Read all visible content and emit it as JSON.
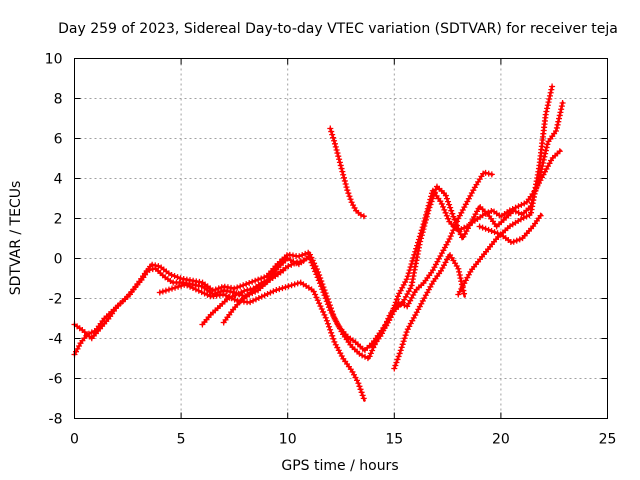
{
  "chart_data": {
    "type": "scatter",
    "title": "Day 259 of 2023, Sidereal Day-to-day VTEC variation (SDTVAR) for receiver teja",
    "xlabel": "GPS time / hours",
    "ylabel": "SDTVAR / TECUs",
    "xlim": [
      0,
      25
    ],
    "ylim": [
      -8,
      10
    ],
    "xticks": [
      "0",
      "5",
      "10",
      "15",
      "20",
      "25"
    ],
    "yticks": [
      "-8",
      "-6",
      "-4",
      "-2",
      "0",
      "2",
      "4",
      "6",
      "8",
      "10"
    ],
    "grid": true,
    "marker": "plus",
    "color": "#ff0000",
    "series": [
      {
        "x": [
          0,
          0.3,
          0.6,
          1.0,
          1.4,
          1.8,
          2.2,
          2.6,
          3.0,
          3.4,
          3.8,
          4.2,
          4.6,
          5.0,
          5.5,
          6.0,
          6.5,
          7.0,
          7.5,
          8.0,
          8.5,
          9.0,
          9.5,
          10.0,
          10.5,
          11.0,
          11.5,
          12.0,
          12.4,
          12.8,
          13.2,
          13.6,
          14.0,
          14.4,
          14.8,
          15.2,
          15.6,
          16.0,
          16.4,
          16.8,
          17.2,
          17.6,
          18.0,
          18.4,
          18.8,
          19.2,
          19.6,
          20.0,
          20.4,
          20.8,
          21.2,
          21.6,
          22.0,
          22.4,
          22.8
        ],
        "y": [
          -4.8,
          -4.2,
          -3.8,
          -3.6,
          -3.0,
          -2.6,
          -2.2,
          -1.8,
          -1.2,
          -0.6,
          -0.5,
          -0.9,
          -1.2,
          -1.2,
          -1.3,
          -1.4,
          -1.8,
          -1.6,
          -1.7,
          -1.9,
          -1.5,
          -1.2,
          -0.5,
          0.0,
          -0.3,
          0.1,
          -1.2,
          -2.6,
          -3.4,
          -3.9,
          -4.2,
          -4.6,
          -4.2,
          -3.6,
          -3.0,
          -1.8,
          -1.0,
          0.4,
          1.8,
          3.4,
          2.8,
          1.8,
          1.4,
          1.6,
          1.9,
          2.2,
          2.4,
          2.1,
          2.4,
          2.6,
          2.8,
          3.4,
          4.2,
          5.0,
          5.4
        ]
      },
      {
        "x": [
          0,
          0.4,
          0.8,
          1.2,
          1.6,
          2.0,
          2.4,
          2.8,
          3.2,
          3.6,
          4.0,
          4.5,
          5.0,
          5.5,
          6.0,
          6.5,
          7.0,
          7.5,
          8.0,
          8.5,
          9.0,
          9.5,
          10.0,
          10.5,
          11.0,
          11.4,
          11.8,
          12.2,
          12.6,
          13.0,
          13.4,
          13.8,
          14.2,
          14.6,
          15.0,
          15.4,
          15.8,
          16.2,
          16.6,
          17.0,
          17.4,
          17.8,
          18.2,
          18.6,
          19.0,
          19.4,
          19.8,
          20.2,
          20.6,
          21.0,
          21.4,
          21.8,
          22.2,
          22.6,
          22.9
        ],
        "y": [
          -3.3,
          -3.6,
          -4.0,
          -3.5,
          -3.0,
          -2.4,
          -2.0,
          -1.5,
          -1.0,
          -0.3,
          -0.4,
          -0.8,
          -1.0,
          -1.1,
          -1.2,
          -1.6,
          -1.4,
          -1.5,
          -1.3,
          -1.1,
          -0.9,
          -0.3,
          0.2,
          0.1,
          0.3,
          -0.6,
          -1.8,
          -3.0,
          -3.8,
          -4.4,
          -4.8,
          -5.0,
          -4.0,
          -3.4,
          -2.6,
          -2.2,
          -1.4,
          0.8,
          2.4,
          3.6,
          3.2,
          2.0,
          1.0,
          1.8,
          2.6,
          2.2,
          1.6,
          2.0,
          2.4,
          2.2,
          2.6,
          4.0,
          5.8,
          6.4,
          7.8
        ]
      },
      {
        "x": [
          4.0,
          4.6,
          5.2,
          5.8,
          6.4,
          7.0,
          7.6,
          8.2,
          8.8,
          9.4,
          10.0,
          10.6,
          11.2,
          11.8,
          12.2,
          12.6,
          13.0,
          13.3,
          13.6
        ],
        "y": [
          -1.7,
          -1.5,
          -1.3,
          -1.6,
          -1.9,
          -1.8,
          -2.1,
          -2.2,
          -1.9,
          -1.6,
          -1.4,
          -1.2,
          -1.6,
          -3.0,
          -4.2,
          -5.0,
          -5.6,
          -6.2,
          -7.1
        ]
      },
      {
        "x": [
          6.0,
          6.4,
          6.8,
          7.2,
          7.6,
          8.0,
          8.4,
          8.8,
          9.2,
          9.6,
          10.0,
          10.4,
          10.8
        ],
        "y": [
          -3.3,
          -2.8,
          -2.4,
          -2.0,
          -1.8,
          -1.6,
          -1.5,
          -1.2,
          -1.0,
          -0.7,
          -0.4,
          -0.2,
          -0.1
        ]
      },
      {
        "x": [
          7.0,
          7.4,
          7.8,
          8.2,
          8.6,
          9.0,
          9.4,
          9.8
        ],
        "y": [
          -3.2,
          -2.6,
          -2.1,
          -1.8,
          -1.6,
          -1.2,
          -0.9,
          -0.6
        ]
      },
      {
        "x": [
          12.0,
          12.2,
          12.4,
          12.6,
          12.8,
          13.0,
          13.2,
          13.4,
          13.6
        ],
        "y": [
          6.5,
          5.8,
          5.0,
          4.2,
          3.4,
          2.8,
          2.4,
          2.2,
          2.1
        ]
      },
      {
        "x": [
          14.0,
          14.4,
          14.8,
          15.2,
          15.6,
          16.0,
          16.4,
          16.8,
          17.2,
          17.6,
          18.0,
          18.4,
          18.8,
          19.2,
          19.6
        ],
        "y": [
          -4.4,
          -3.8,
          -2.8,
          -2.2,
          -2.4,
          -1.6,
          -1.2,
          -0.6,
          0.2,
          1.0,
          2.0,
          2.8,
          3.6,
          4.3,
          4.2
        ]
      },
      {
        "x": [
          15.0,
          15.3,
          15.6,
          16.0,
          16.4,
          16.8,
          17.2,
          17.6,
          18.0,
          18.3
        ],
        "y": [
          -5.5,
          -4.6,
          -3.6,
          -2.8,
          -2.0,
          -1.2,
          -0.6,
          0.2,
          -0.5,
          -1.9
        ]
      },
      {
        "x": [
          18.0,
          18.6,
          19.2,
          19.8,
          20.4,
          21.0,
          21.4,
          21.8,
          22.1,
          22.4
        ],
        "y": [
          -1.8,
          -0.6,
          0.2,
          1.0,
          1.6,
          2.0,
          2.2,
          4.6,
          7.2,
          8.6
        ]
      },
      {
        "x": [
          19.0,
          19.5,
          20.0,
          20.5,
          21.0,
          21.5,
          21.9
        ],
        "y": [
          1.6,
          1.4,
          1.2,
          0.8,
          1.0,
          1.6,
          2.2
        ]
      }
    ]
  }
}
